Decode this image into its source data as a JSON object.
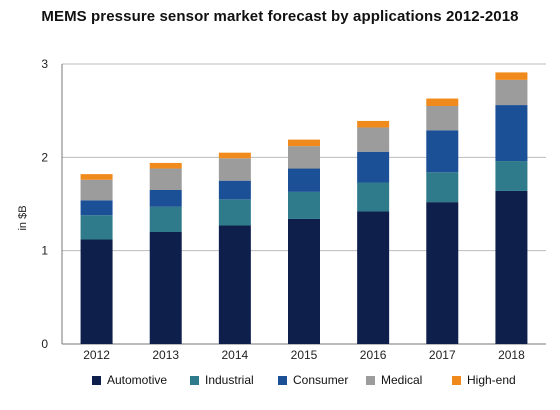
{
  "chart_data": {
    "type": "bar",
    "stacked": true,
    "title": "MEMS pressure sensor market forecast by applications 2012-2018",
    "ylabel": "in $B",
    "xlabel": "",
    "ylim": [
      0,
      3
    ],
    "yticks": [
      "0",
      "1",
      "2",
      "3"
    ],
    "grid": true,
    "legend_position": "bottom",
    "categories": [
      "2012",
      "2013",
      "2014",
      "2015",
      "2016",
      "2017",
      "2018"
    ],
    "series": [
      {
        "name": "Automotive",
        "color": "#0d1f4a",
        "values": [
          1.12,
          1.2,
          1.27,
          1.34,
          1.42,
          1.52,
          1.64
        ]
      },
      {
        "name": "Industrial",
        "color": "#2f7b8c",
        "values": [
          0.26,
          0.27,
          0.28,
          0.29,
          0.31,
          0.32,
          0.32
        ]
      },
      {
        "name": "Consumer",
        "color": "#1b4f96",
        "values": [
          0.16,
          0.18,
          0.2,
          0.25,
          0.33,
          0.45,
          0.6
        ]
      },
      {
        "name": "Medical",
        "color": "#9c9c9c",
        "values": [
          0.22,
          0.23,
          0.24,
          0.24,
          0.26,
          0.26,
          0.27
        ]
      },
      {
        "name": "High-end",
        "color": "#f08a1c",
        "values": [
          0.06,
          0.06,
          0.06,
          0.07,
          0.07,
          0.08,
          0.08
        ]
      }
    ]
  }
}
